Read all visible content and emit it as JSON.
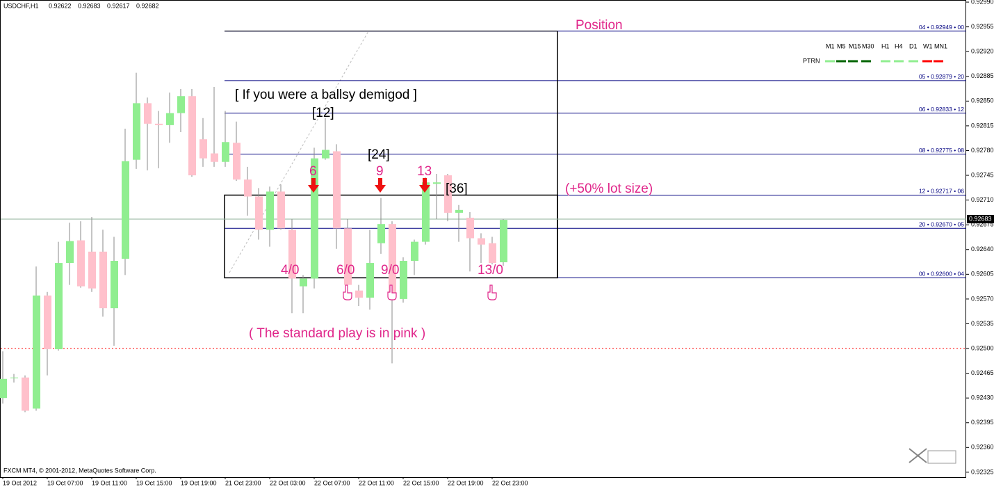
{
  "chart_data": {
    "type": "candlestick",
    "title": "USDCHF,H1",
    "categories": [
      "19 Oct 2012",
      null,
      null,
      null,
      "19 Oct 07:00",
      null,
      null,
      null,
      "19 Oct 11:00",
      null,
      null,
      null,
      "19 Oct 15:00",
      null,
      null,
      null,
      "19 Oct 19:00",
      null,
      null,
      null,
      "21 Oct 23:00",
      null,
      null,
      null,
      "22 Oct 03:00",
      null,
      null,
      null,
      "22 Oct 07:00",
      null,
      null,
      null,
      "22 Oct 11:00",
      null,
      null,
      null,
      "22 Oct 15:00",
      null,
      null,
      null,
      "22 Oct 19:00",
      null,
      null,
      null,
      "22 Oct 23:00",
      null
    ],
    "open": [
      0.9243,
      0.92458,
      0.92459,
      0.92415,
      0.92575,
      0.92499,
      0.92621,
      0.92653,
      0.92637,
      0.92637,
      0.92557,
      0.92627,
      0.92767,
      0.92847,
      0.92818,
      0.92816,
      0.92833,
      0.92857,
      0.92796,
      0.92776,
      0.92764,
      0.92791,
      0.92739,
      0.92715,
      0.92668,
      0.92722,
      0.92668,
      0.92588,
      0.92599,
      0.92769,
      0.92779,
      0.9267,
      0.92582,
      0.92572,
      0.92649,
      0.92676,
      0.9257,
      0.92624,
      0.92651,
      0.92733,
      0.92745,
      0.92692,
      0.92685,
      0.92656,
      0.92649,
      0.92622
    ],
    "high": [
      0.92496,
      0.92464,
      0.92462,
      0.92616,
      0.9258,
      0.92651,
      0.92678,
      0.9268,
      0.92686,
      0.92668,
      0.92658,
      0.92811,
      0.9289,
      0.92855,
      0.92836,
      0.92862,
      0.92867,
      0.92867,
      0.92826,
      0.9287,
      0.92836,
      0.92821,
      0.92757,
      0.92727,
      0.92729,
      0.92732,
      0.92683,
      0.92604,
      0.92784,
      0.92826,
      0.92789,
      0.92683,
      0.9259,
      0.92668,
      0.92713,
      0.9268,
      0.92629,
      0.92654,
      0.92742,
      0.92747,
      0.92747,
      0.92703,
      0.92693,
      0.92663,
      0.92658,
      0.92683
    ],
    "low": [
      0.92422,
      0.92452,
      0.9241,
      0.92412,
      0.92462,
      0.92497,
      0.9259,
      0.92586,
      0.9258,
      0.92545,
      0.92504,
      0.92604,
      0.92754,
      0.92752,
      0.92755,
      0.92791,
      0.92806,
      0.92743,
      0.92757,
      0.92757,
      0.92757,
      0.92737,
      0.92688,
      0.92654,
      0.92644,
      0.92668,
      0.9255,
      0.9255,
      0.92585,
      0.92767,
      0.92641,
      0.92575,
      0.9256,
      0.92555,
      0.92634,
      0.92479,
      0.92565,
      0.92604,
      0.92647,
      0.92683,
      0.9268,
      0.92651,
      0.92609,
      0.92621,
      0.92619,
      0.92617
    ],
    "close": [
      0.92457,
      0.92459,
      0.92412,
      0.92575,
      0.92499,
      0.92621,
      0.92652,
      0.92588,
      0.92585,
      0.92557,
      0.92624,
      0.92765,
      0.92847,
      0.92818,
      0.92816,
      0.92833,
      0.92857,
      0.92745,
      0.92769,
      0.92764,
      0.92792,
      0.92739,
      0.92715,
      0.92668,
      0.92722,
      0.9267,
      0.92599,
      0.92599,
      0.92769,
      0.92781,
      0.9267,
      0.9259,
      0.92572,
      0.92621,
      0.92676,
      0.9257,
      0.92624,
      0.92651,
      0.92735,
      0.92735,
      0.92692,
      0.92696,
      0.92656,
      0.92647,
      0.92621,
      0.92682
    ],
    "up_color": "#90ee90",
    "down_color": "#ffc0cb",
    "wick_color": "#8a8a8a",
    "ylim": [
      0.92318,
      0.92993
    ],
    "yticks": [
      {
        "value": 0.9299,
        "label": "0.92990"
      },
      0.92955,
      {
        "value": 0.9292,
        "label": "0.92920"
      },
      0.92885,
      {
        "value": 0.9285,
        "label": "0.92850"
      },
      0.92815,
      {
        "value": 0.9278,
        "label": "0.92780"
      },
      0.92745,
      {
        "value": 0.9271,
        "label": "0.92710"
      },
      0.92675,
      {
        "value": 0.9264,
        "label": "0.92640"
      },
      0.92605,
      {
        "value": 0.9257,
        "label": "0.92570"
      },
      0.92535,
      {
        "value": 0.925,
        "label": "0.92500"
      },
      0.92465,
      {
        "value": 0.9243,
        "label": "0.92430"
      },
      0.92395,
      {
        "value": 0.9236,
        "label": "0.92360"
      },
      0.92325
    ],
    "levels": [
      {
        "value": 0.92949,
        "label": "04 • 0.92949 • 00"
      },
      {
        "value": 0.92879,
        "label": "05 • 0.92879 • 20"
      },
      {
        "value": 0.92833,
        "label": "06 • 0.92833 • 12"
      },
      {
        "value": 0.92775,
        "label": "08 • 0.92775 • 08"
      },
      {
        "value": 0.92717,
        "label": "12 • 0.92717 • 06"
      },
      {
        "value": 0.9267,
        "label": "20 • 0.92670 • 05"
      },
      {
        "value": 0.926,
        "label": "00 • 0.92600 • 04"
      }
    ],
    "level_color": "#000080",
    "current_price": 0.92683,
    "current_price_color": "#8fb09a",
    "dotted_level": 0.925,
    "dotted_level_color": "#ff0000",
    "footer": "FXCM MT4, © 2001-2012, MetaQuotes Software Corp."
  },
  "annotations": [
    "Position",
    "[ If you were a ballsy demigod ]",
    "[12]",
    "[24]",
    "[36]",
    "6",
    "9",
    "13",
    "(+50% lot size)",
    "4/0",
    "6/0",
    "9/0",
    "13/0",
    "( The standard play is in pink )"
  ],
  "indicator": {
    "name": "PTRN",
    "timeframes": [
      {
        "label": "M1",
        "color": "#90ee90"
      },
      {
        "label": "M5",
        "color": "#006400"
      },
      {
        "label": "M15",
        "color": "#006400"
      },
      {
        "label": "M30",
        "color": "#006400"
      },
      {
        "label": "H1",
        "color": "#90ee90"
      },
      {
        "label": "H4",
        "color": "#90ee90"
      },
      {
        "label": "D1",
        "color": "#90ee90"
      },
      {
        "label": "W1",
        "color": "#ff0000"
      },
      {
        "label": "MN1",
        "color": "#ff0000"
      }
    ]
  }
}
